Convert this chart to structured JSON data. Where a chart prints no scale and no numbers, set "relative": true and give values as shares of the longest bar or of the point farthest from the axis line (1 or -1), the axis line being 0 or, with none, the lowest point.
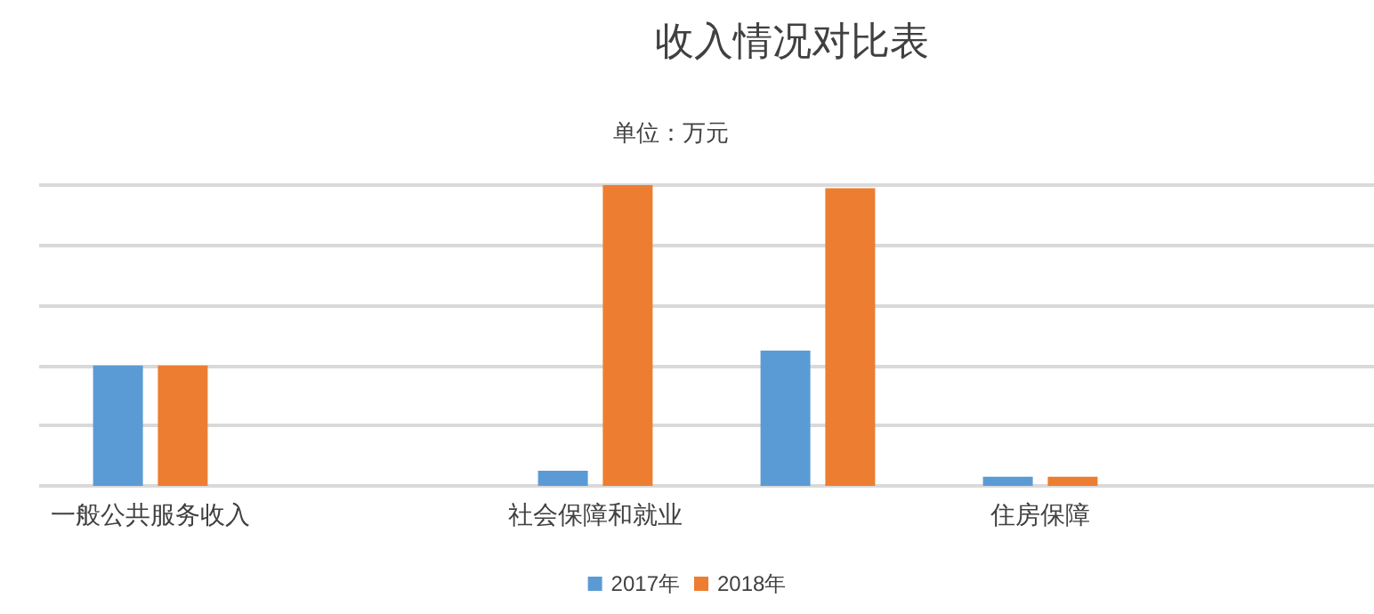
{
  "chart_data": {
    "type": "bar",
    "title": "收入情况对比表",
    "subtitle": "单位：万元",
    "relative": true,
    "categories": [
      "一般公共服务收入",
      null,
      "社会保障和就业",
      null,
      "住房保障",
      null
    ],
    "series": [
      {
        "name": "2017年",
        "color": "#5b9bd5",
        "values": [
          0.4,
          null,
          0.05,
          0.45,
          0.03,
          null
        ]
      },
      {
        "name": "2018年",
        "color": "#ed7d31",
        "values": [
          0.4,
          null,
          1.0,
          0.99,
          0.03,
          null
        ]
      }
    ],
    "grid": "y",
    "legend": "bottom"
  }
}
